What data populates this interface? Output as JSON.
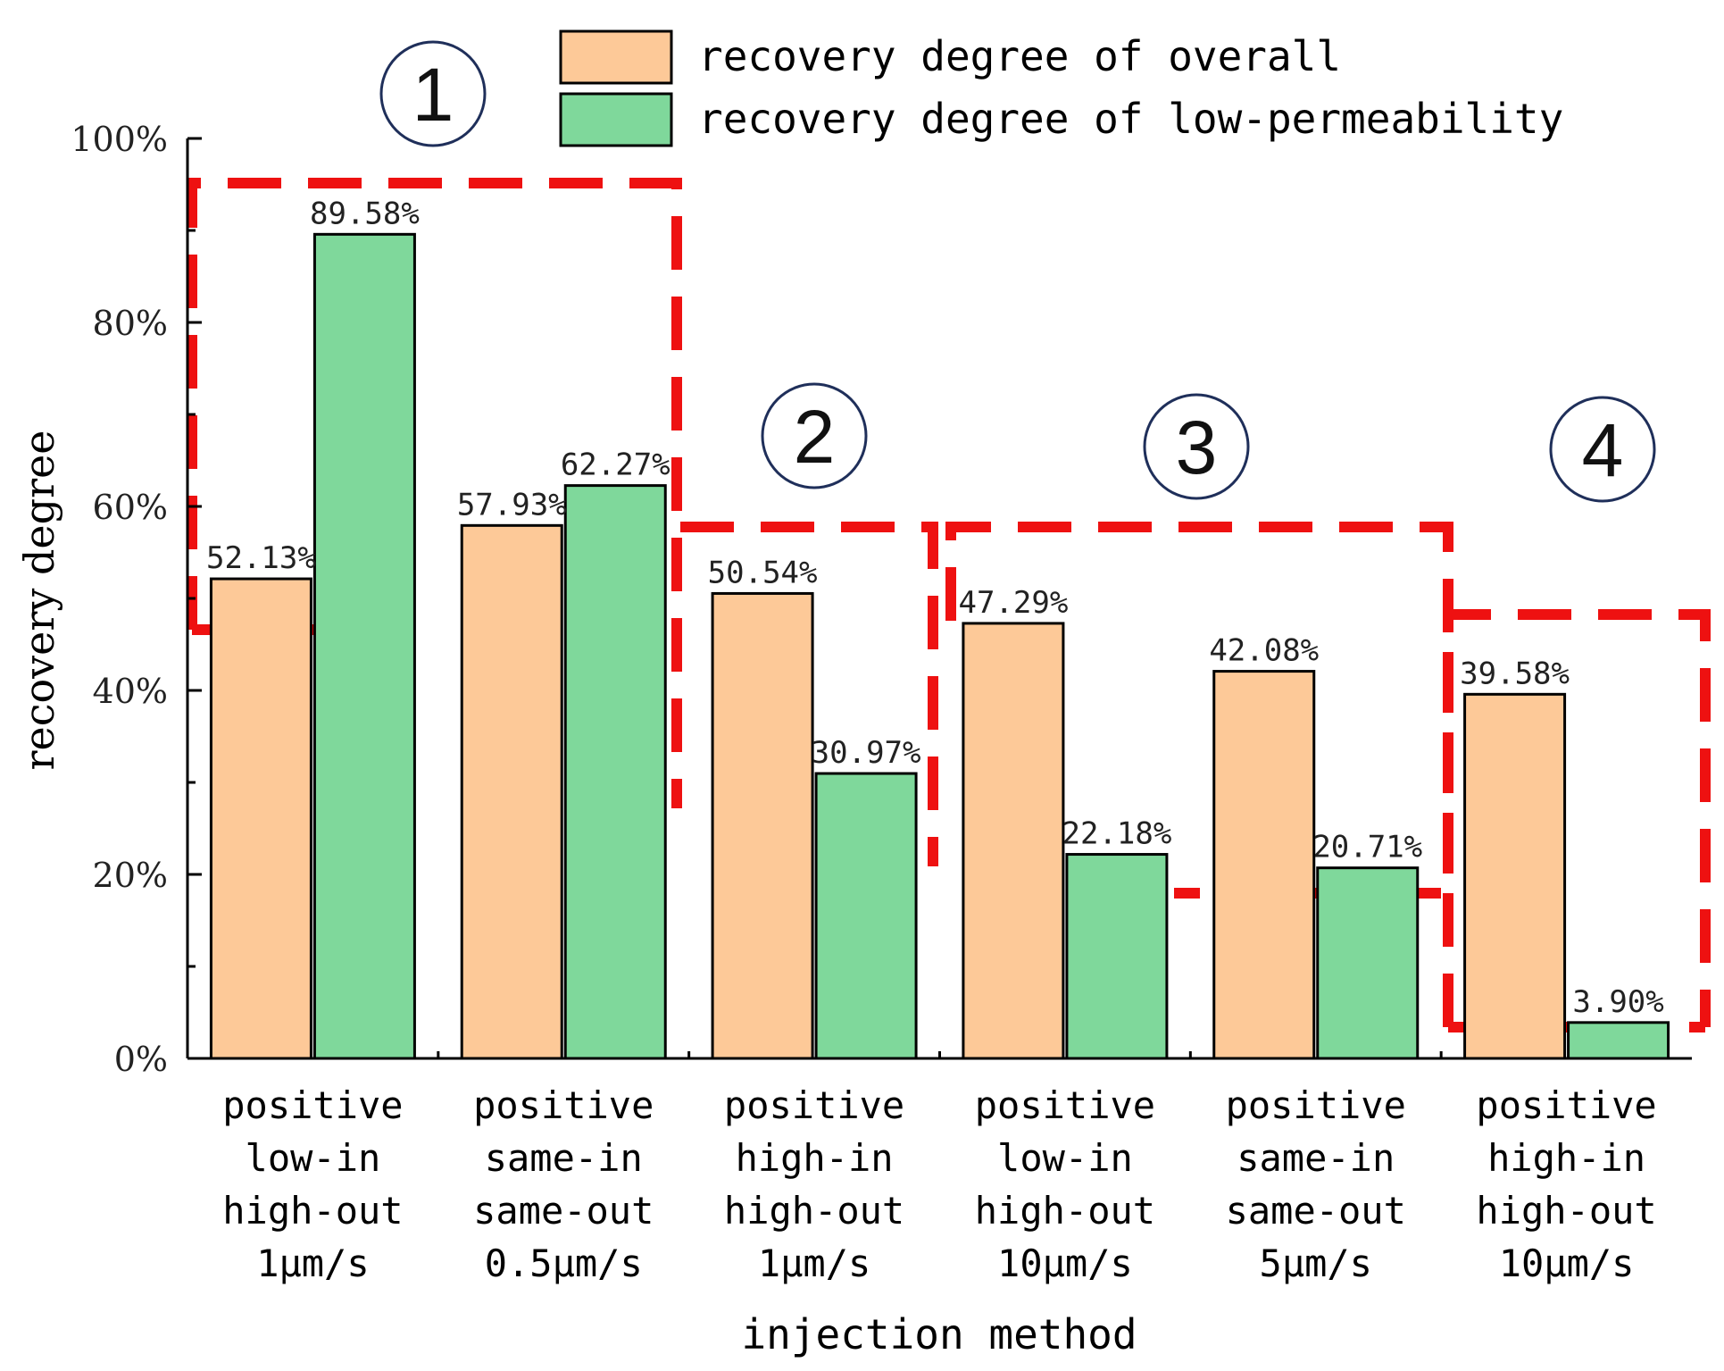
{
  "chart_data": {
    "type": "bar",
    "title": "",
    "xlabel": "injection method",
    "ylabel": "recovery degree",
    "ylim": [
      0,
      100
    ],
    "yticks": [
      "0%",
      "20%",
      "40%",
      "60%",
      "80%",
      "100%"
    ],
    "categories": [
      [
        "positive",
        "low-in",
        "high-out",
        "1μm/s"
      ],
      [
        "positive",
        "same-in",
        "same-out",
        "0.5μm/s"
      ],
      [
        "positive",
        "high-in",
        "high-out",
        "1μm/s"
      ],
      [
        "positive",
        "low-in",
        "high-out",
        "10μm/s"
      ],
      [
        "positive",
        "same-in",
        "same-out",
        "5μm/s"
      ],
      [
        "positive",
        "high-in",
        "high-out",
        "10μm/s"
      ]
    ],
    "series": [
      {
        "name": "recovery degree of overall",
        "color": "#FDC998",
        "values": [
          52.13,
          57.93,
          50.54,
          47.29,
          42.08,
          39.58
        ],
        "labels": [
          "52.13%",
          "57.93%",
          "50.54%",
          "47.29%",
          "42.08%",
          "39.58%"
        ]
      },
      {
        "name": "recovery degree of low-permeability",
        "color": "#7FD89B",
        "values": [
          89.58,
          62.27,
          30.97,
          22.18,
          20.71,
          3.9
        ],
        "labels": [
          "89.58%",
          "62.27%",
          "30.97%",
          "22.18%",
          "20.71%",
          "3.90%"
        ]
      }
    ],
    "legend_position": "top-right",
    "grid": false,
    "group_markers": [
      "1",
      "2",
      "3",
      "4"
    ],
    "annotation_color": "#EE1111"
  }
}
